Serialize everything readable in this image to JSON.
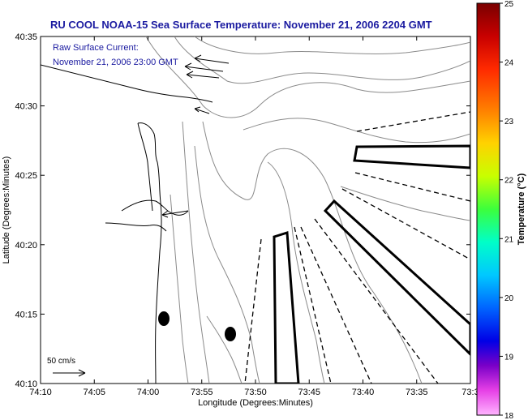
{
  "title": "RU COOL  NOAA-15  Sea Surface Temperature:  November 21, 2006 2204 GMT",
  "legend": {
    "line1": "Raw Surface Current:",
    "line2": "November 21, 2006 23:00 GMT"
  },
  "axes": {
    "xlabel": "Longitude (Degrees:Minutes)",
    "ylabel": "Latitude (Degrees:Minutes)",
    "xticks": [
      "74:10",
      "74:05",
      "74:00",
      "73:55",
      "73:50",
      "73:45",
      "73:40",
      "73:35",
      "73:3"
    ],
    "yticks": [
      "40:35",
      "40:30",
      "40:25",
      "40:20",
      "40:15",
      "40:10"
    ]
  },
  "scale_bar": {
    "label": "50 cm/s"
  },
  "colorbar": {
    "label": "Temperature (°C)",
    "ticks": [
      "25",
      "24",
      "23",
      "22",
      "21",
      "20",
      "19",
      "18"
    ],
    "colors": [
      "#7a0000",
      "#c80000",
      "#ff2a00",
      "#ff8000",
      "#ffd200",
      "#c8ff00",
      "#3cff3c",
      "#00ffc8",
      "#00c8ff",
      "#0064ff",
      "#0000e6",
      "#7a00c8",
      "#e640e6",
      "#ffb4ff"
    ]
  }
}
